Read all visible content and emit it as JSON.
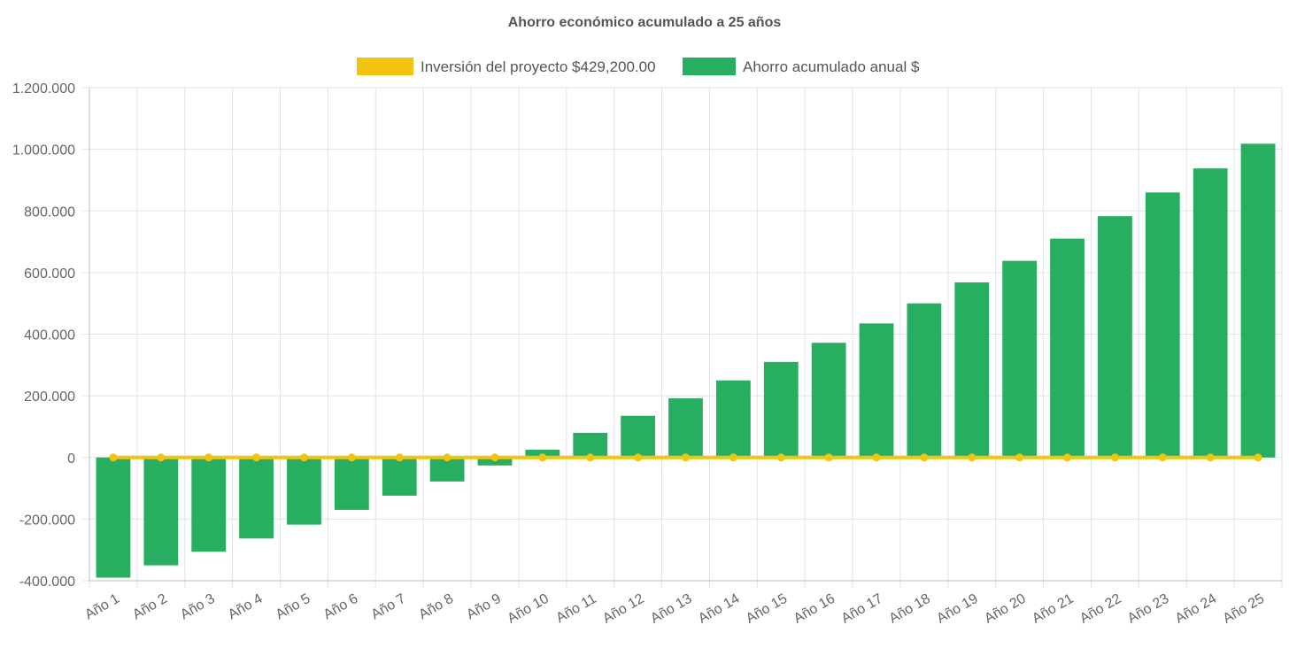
{
  "chart_data": {
    "type": "bar",
    "title": "Ahorro económico acumulado a 25 años",
    "categories": [
      "Año 1",
      "Año 2",
      "Año 3",
      "Año 4",
      "Año 5",
      "Año 6",
      "Año 7",
      "Año 8",
      "Año 9",
      "Año 10",
      "Año 11",
      "Año 12",
      "Año 13",
      "Año 14",
      "Año 15",
      "Año 16",
      "Año 17",
      "Año 18",
      "Año 19",
      "Año 20",
      "Año 21",
      "Año 22",
      "Año 23",
      "Año 24",
      "Año 25"
    ],
    "series": [
      {
        "name": "Inversión del proyecto $429,200.00",
        "type": "line",
        "color": "#f1c40f",
        "values": [
          0,
          0,
          0,
          0,
          0,
          0,
          0,
          0,
          0,
          0,
          0,
          0,
          0,
          0,
          0,
          0,
          0,
          0,
          0,
          0,
          0,
          0,
          0,
          0,
          0
        ]
      },
      {
        "name": "Ahorro acumulado anual $",
        "type": "bar",
        "color": "#27ae60",
        "values": [
          -390000,
          -350000,
          -306000,
          -263000,
          -218000,
          -170000,
          -124000,
          -78000,
          -26000,
          25000,
          80000,
          135000,
          192000,
          250000,
          310000,
          372000,
          435000,
          500000,
          568000,
          638000,
          710000,
          783000,
          860000,
          938000,
          1018000
        ]
      }
    ],
    "ylim": [
      -400000,
      1200000
    ],
    "yticks": [
      1200000,
      1000000,
      800000,
      600000,
      400000,
      200000,
      0,
      -200000,
      -400000
    ],
    "ytick_labels": [
      "1.200.000",
      "1.000.000",
      "800.000",
      "600.000",
      "400.000",
      "200.000",
      "0",
      "-200.000",
      "-400.000"
    ],
    "grid": true,
    "legend_position": "top"
  }
}
